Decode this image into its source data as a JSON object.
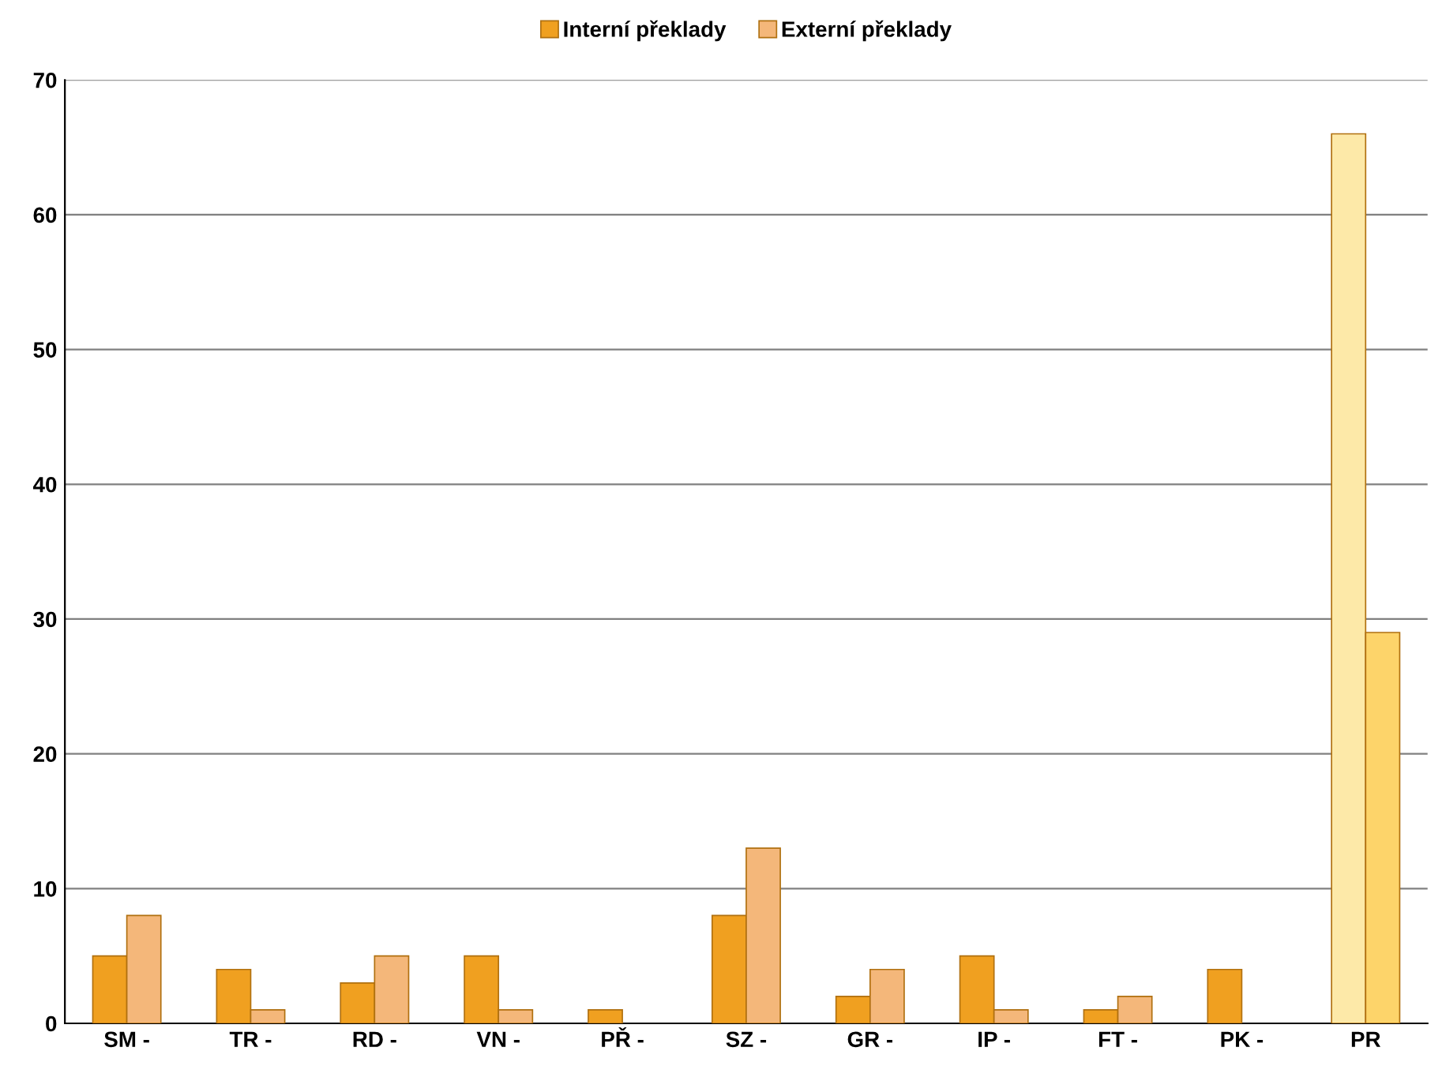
{
  "chart_data": {
    "type": "bar",
    "categories": [
      "SM -",
      "TR -",
      "RD -",
      "VN -",
      "PŘ -",
      "SZ -",
      "GR -",
      "IP -",
      "FT -",
      "PK -",
      "PR"
    ],
    "series": [
      {
        "name": "Interní překlady",
        "color": "#f0a020",
        "colors": [
          "#f0a020",
          "#f0a020",
          "#f0a020",
          "#f0a020",
          "#f0a020",
          "#f0a020",
          "#f0a020",
          "#f0a020",
          "#f0a020",
          "#f0a020",
          "#fde9a8"
        ],
        "values": [
          5,
          4,
          3,
          5,
          1,
          8,
          2,
          5,
          1,
          4,
          66
        ]
      },
      {
        "name": "Externí překlady",
        "color": "#f4b77a",
        "colors": [
          "#f4b77a",
          "#f4b77a",
          "#f4b77a",
          "#f4b77a",
          "#f4b77a",
          "#f4b77a",
          "#f4b77a",
          "#f4b77a",
          "#f4b77a",
          "#f4b77a",
          "#fdd46a"
        ],
        "values": [
          8,
          1,
          5,
          1,
          null,
          13,
          4,
          1,
          2,
          null,
          29
        ]
      }
    ],
    "ylim": [
      0,
      70
    ],
    "yticks": [
      0,
      10,
      20,
      30,
      40,
      50,
      60,
      70
    ],
    "grid": "y",
    "legend": "top"
  }
}
